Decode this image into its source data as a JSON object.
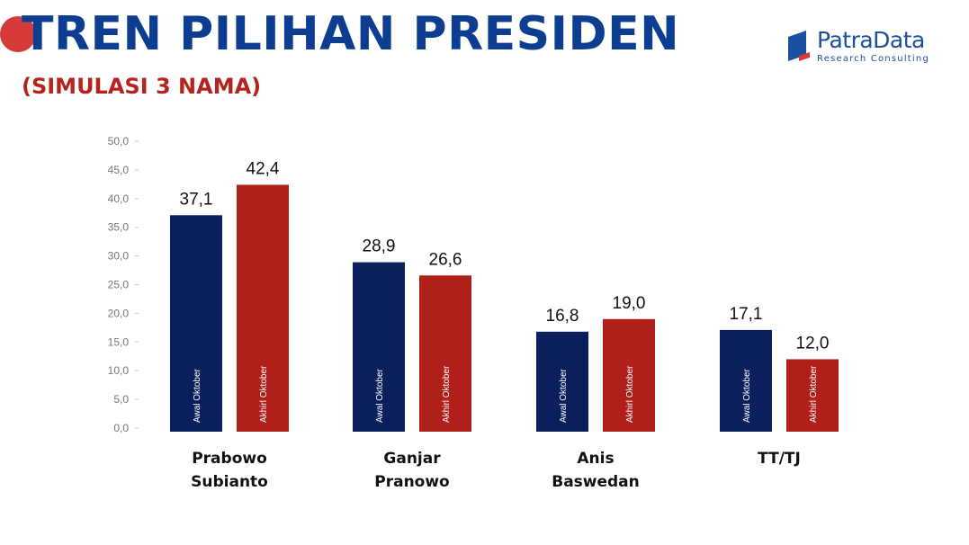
{
  "header": {
    "title": "TREN PILIHAN PRESIDEN",
    "subtitle": "(SIMULASI 3 NAMA)"
  },
  "logo": {
    "name": "PatraData",
    "tagline": "Research Consulting"
  },
  "colors": {
    "title": "#0d3d91",
    "subtitle": "#b5241c",
    "series_awal": "#0a1f5c",
    "series_akhir": "#b0201a",
    "dot": "#d63a3a"
  },
  "chart_data": {
    "type": "bar",
    "title": "TREN PILIHAN PRESIDEN",
    "subtitle": "(SIMULASI 3 NAMA)",
    "categories": [
      [
        "Prabowo",
        "Subianto"
      ],
      [
        "Ganjar",
        "Pranowo"
      ],
      [
        "Anis",
        "Baswedan"
      ],
      [
        "TT/TJ"
      ]
    ],
    "series": [
      {
        "name": "Awal Oktober",
        "values": [
          37.1,
          28.9,
          16.8,
          17.1
        ],
        "labels": [
          "37,1",
          "28,9",
          "16,8",
          "17,1"
        ]
      },
      {
        "name": "Akhirl Oktober",
        "values": [
          42.4,
          26.6,
          19.0,
          12.0
        ],
        "labels": [
          "42,4",
          "26,6",
          "19,0",
          "12,0"
        ]
      }
    ],
    "ylim": [
      0,
      50
    ],
    "yticks": [
      0,
      5,
      10,
      15,
      20,
      25,
      30,
      35,
      40,
      45,
      50
    ],
    "ytick_labels": [
      "0,0",
      "5,0",
      "10,0",
      "15,0",
      "20,0",
      "25,0",
      "30,0",
      "35,0",
      "40,0",
      "45,0",
      "50,0"
    ],
    "xlabel": "",
    "ylabel": "",
    "grid": false,
    "legend": "none"
  }
}
